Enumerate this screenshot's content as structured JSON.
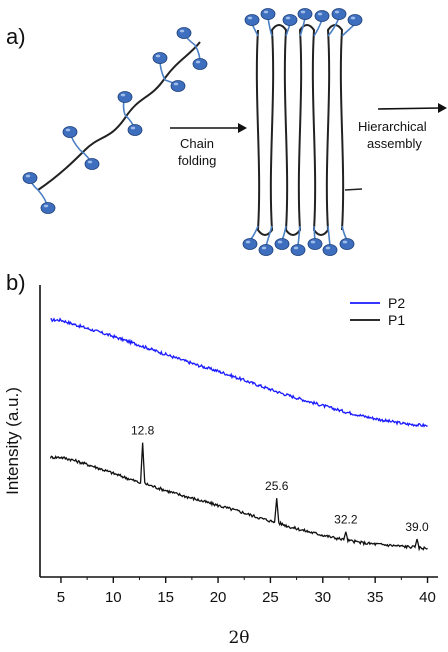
{
  "panel_a": {
    "label": "a)",
    "arrow1_lines": [
      "Chain",
      "folding"
    ],
    "arrow2_lines": [
      "Hierarchical",
      "assembly"
    ],
    "colors": {
      "bead": "#3e6fbf",
      "bead_edge": "#1f3f78",
      "linker": "#4a7fc4",
      "chain": "#222222"
    }
  },
  "panel_b": {
    "label": "b)"
  },
  "chart_data": {
    "type": "line",
    "xlabel": "2θ",
    "ylabel": "Intensity (a.u.)",
    "xlim": [
      3,
      41
    ],
    "x_ticks": [
      5,
      10,
      15,
      20,
      25,
      30,
      35,
      40
    ],
    "y_ticks": [],
    "grid": false,
    "legend_position": "top-right",
    "series": [
      {
        "name": "P2",
        "color": "#1a1aff",
        "x": [
          4,
          5,
          6,
          8,
          10,
          12,
          14,
          16,
          18,
          20,
          22,
          24,
          26,
          28,
          30,
          32,
          34,
          36,
          38,
          40
        ],
        "y": [
          88.0,
          88.0,
          86.8,
          84.6,
          82.4,
          80.0,
          77.5,
          75.0,
          72.6,
          70.5,
          68.0,
          65.5,
          63.0,
          60.8,
          58.7,
          56.7,
          55.0,
          53.5,
          52.4,
          51.8
        ]
      },
      {
        "name": "P1",
        "color": "#111111",
        "x": [
          4,
          5,
          6,
          8,
          10,
          12,
          12.6,
          12.8,
          13.0,
          14,
          16,
          18,
          20,
          22,
          24,
          25.4,
          25.6,
          25.8,
          27,
          29,
          31,
          32.0,
          32.2,
          32.4,
          34,
          36,
          38,
          38.8,
          39.0,
          39.2,
          40
        ],
        "y": [
          41.0,
          41.0,
          40.2,
          38.0,
          35.5,
          33.0,
          32.2,
          46.0,
          32.0,
          30.8,
          28.5,
          26.5,
          24.5,
          22.5,
          20.2,
          18.8,
          27.0,
          18.5,
          17.0,
          15.2,
          13.5,
          12.8,
          15.5,
          12.5,
          11.6,
          11.0,
          10.4,
          10.2,
          13.0,
          10.0,
          9.8
        ]
      }
    ],
    "annotations": [
      {
        "x": 12.8,
        "y": 46.0,
        "text": "12.8"
      },
      {
        "x": 25.6,
        "y": 27.0,
        "text": "25.6"
      },
      {
        "x": 32.2,
        "y": 15.5,
        "text": "32.2"
      },
      {
        "x": 39.0,
        "y": 13.0,
        "text": "39.0"
      }
    ]
  }
}
